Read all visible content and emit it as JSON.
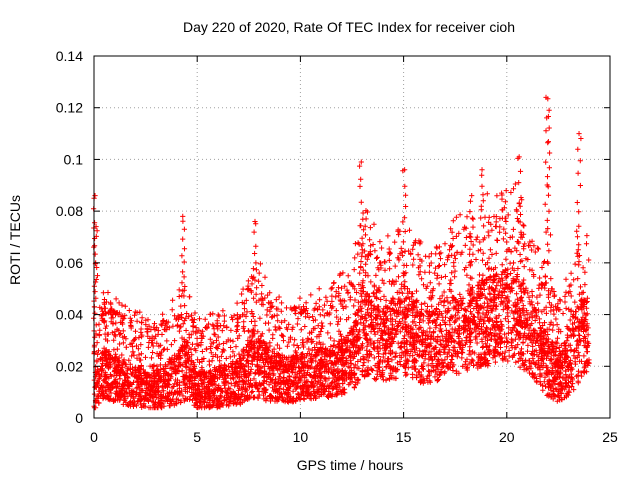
{
  "chart_data": {
    "type": "scatter",
    "title": "Day 220 of 2020, Rate Of TEC Index for receiver cioh",
    "xlabel": "GPS time / hours",
    "ylabel": "ROTI / TECUs",
    "xlim": [
      0,
      25
    ],
    "ylim": [
      0,
      0.14
    ],
    "xticks": [
      0,
      5,
      10,
      15,
      20,
      25
    ],
    "xtick_labels": [
      "0",
      "5",
      "10",
      "15",
      "20",
      "25"
    ],
    "yticks": [
      0,
      0.02,
      0.04,
      0.06,
      0.08,
      0.1,
      0.12,
      0.14
    ],
    "ytick_labels": [
      "0",
      "0.02",
      "0.04",
      "0.06",
      "0.08",
      "0.1",
      "0.12",
      "0.14"
    ],
    "grid": true,
    "marker": "+",
    "marker_color": "#ff0000",
    "series": [
      {
        "name": "ROTI",
        "x_range": [
          0,
          24
        ],
        "note": "dense cloud of plus markers, one per receiver-satellite epoch",
        "envelope_x": [
          0,
          0.5,
          1,
          2,
          3,
          4,
          4.5,
          5,
          6,
          7,
          7.8,
          8.5,
          9.5,
          10.5,
          11.5,
          12.5,
          13,
          13.5,
          14,
          15,
          16,
          17,
          18,
          19,
          20,
          20.5,
          21,
          21.5,
          22,
          22.5,
          23,
          23.5,
          24
        ],
        "envelope_base": [
          0.015,
          0.02,
          0.018,
          0.016,
          0.015,
          0.017,
          0.019,
          0.015,
          0.016,
          0.017,
          0.02,
          0.018,
          0.018,
          0.019,
          0.02,
          0.022,
          0.028,
          0.027,
          0.026,
          0.028,
          0.025,
          0.027,
          0.03,
          0.032,
          0.034,
          0.032,
          0.03,
          0.025,
          0.02,
          0.018,
          0.02,
          0.026,
          0.03
        ],
        "envelope_spread": [
          0.015,
          0.025,
          0.022,
          0.02,
          0.018,
          0.025,
          0.03,
          0.018,
          0.02,
          0.022,
          0.035,
          0.025,
          0.022,
          0.024,
          0.025,
          0.03,
          0.045,
          0.038,
          0.035,
          0.045,
          0.035,
          0.037,
          0.04,
          0.042,
          0.045,
          0.045,
          0.04,
          0.035,
          0.03,
          0.025,
          0.03,
          0.04,
          0.035
        ],
        "peaks": [
          {
            "x": 0.05,
            "y": 0.086
          },
          {
            "x": 0.1,
            "y": 0.074
          },
          {
            "x": 4.3,
            "y": 0.078
          },
          {
            "x": 7.8,
            "y": 0.076
          },
          {
            "x": 12.95,
            "y": 0.099
          },
          {
            "x": 15.05,
            "y": 0.096
          },
          {
            "x": 18.3,
            "y": 0.086
          },
          {
            "x": 18.8,
            "y": 0.096
          },
          {
            "x": 20.6,
            "y": 0.101
          },
          {
            "x": 21.9,
            "y": 0.124
          },
          {
            "x": 22.05,
            "y": 0.119
          },
          {
            "x": 23.5,
            "y": 0.11
          }
        ]
      }
    ]
  }
}
